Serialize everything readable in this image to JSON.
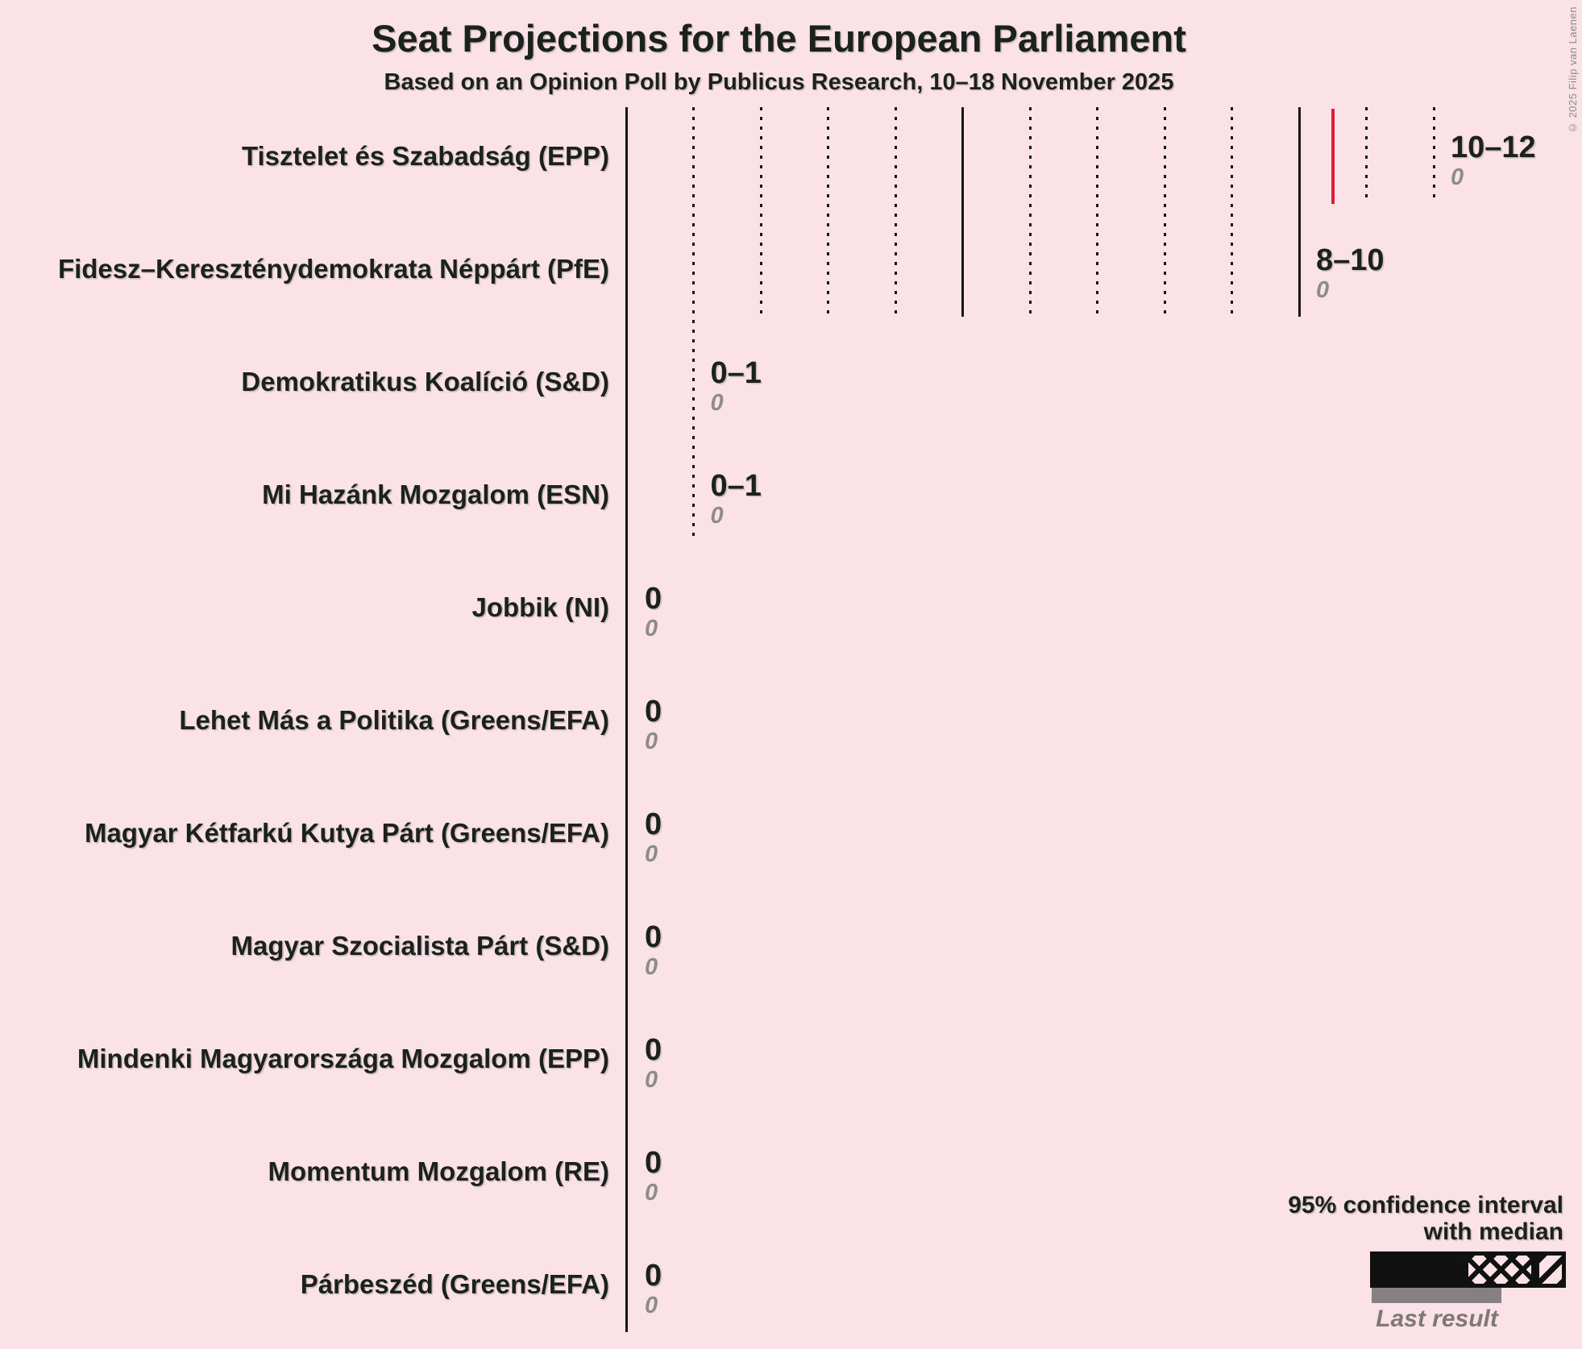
{
  "title": "Seat Projections for the European Parliament",
  "subtitle": "Based on an Opinion Poll by Publicus Research, 10–18 November 2025",
  "copyright": "© 2025 Filip van Laenen",
  "legend": {
    "ci_line1": "95% confidence interval",
    "ci_line2": "with median",
    "last_result": "Last result"
  },
  "colors": {
    "background": "#FAE2E7",
    "text": "#1B221E",
    "muted_text": "#8C8C8C",
    "gridline": "#161616",
    "median_line": "#DC1C3C",
    "last_result_bar": "#868083"
  },
  "chart_data": {
    "type": "bar",
    "orientation": "horizontal",
    "x_axis": {
      "min": 0,
      "max": 12,
      "tick_step": 1,
      "major_step": 5,
      "tick_labels_shown": false
    },
    "legend_note": "95% confidence interval with median; gray underbar = last result",
    "bars": [
      {
        "party": "Tisztelet és Szabadság (EPP)",
        "ci_label": "10–12",
        "low": 10,
        "high": 12,
        "median": 10.5,
        "median_line": true,
        "solid_to": 10,
        "crosshatch_to": 11,
        "diagonal_to": 12,
        "color": "#3699FB",
        "last_result": 0,
        "last_result_label": "0"
      },
      {
        "party": "Fidesz–Kereszténydemokrata Néppárt (PfE)",
        "ci_label": "8–10",
        "low": 8,
        "high": 10,
        "median": 9,
        "median_line": false,
        "solid_to": 8,
        "crosshatch_to": 9,
        "diagonal_to": 10,
        "color": "#0D0D0D",
        "last_result": 0,
        "last_result_label": "0"
      },
      {
        "party": "Demokratikus Koalíció (S&D)",
        "ci_label": "0–1",
        "low": 0,
        "high": 1,
        "median": null,
        "median_line": false,
        "solid_to": 0,
        "crosshatch_to": 1,
        "diagonal_to": 1,
        "color": "#FF0600",
        "last_result": 0,
        "last_result_label": "0"
      },
      {
        "party": "Mi Hazánk Mozgalom (ESN)",
        "ci_label": "0–1",
        "low": 0,
        "high": 1,
        "median": null,
        "median_line": false,
        "solid_to": 0,
        "crosshatch_to": 0,
        "diagonal_to": 1,
        "color": "#76493B",
        "last_result": 0,
        "last_result_label": "0"
      },
      {
        "party": "Jobbik (NI)",
        "ci_label": "0",
        "low": 0,
        "high": 0,
        "median": null,
        "median_line": false,
        "solid_to": 0,
        "crosshatch_to": 0,
        "diagonal_to": 0,
        "color": null,
        "last_result": 0,
        "last_result_label": "0"
      },
      {
        "party": "Lehet Más a Politika (Greens/EFA)",
        "ci_label": "0",
        "low": 0,
        "high": 0,
        "median": null,
        "median_line": false,
        "solid_to": 0,
        "crosshatch_to": 0,
        "diagonal_to": 0,
        "color": null,
        "last_result": 0,
        "last_result_label": "0"
      },
      {
        "party": "Magyar Kétfarkú Kutya Párt (Greens/EFA)",
        "ci_label": "0",
        "low": 0,
        "high": 0,
        "median": null,
        "median_line": false,
        "solid_to": 0,
        "crosshatch_to": 0,
        "diagonal_to": 0,
        "color": null,
        "last_result": 0,
        "last_result_label": "0"
      },
      {
        "party": "Magyar Szocialista Párt (S&D)",
        "ci_label": "0",
        "low": 0,
        "high": 0,
        "median": null,
        "median_line": false,
        "solid_to": 0,
        "crosshatch_to": 0,
        "diagonal_to": 0,
        "color": null,
        "last_result": 0,
        "last_result_label": "0"
      },
      {
        "party": "Mindenki Magyarországa Mozgalom (EPP)",
        "ci_label": "0",
        "low": 0,
        "high": 0,
        "median": null,
        "median_line": false,
        "solid_to": 0,
        "crosshatch_to": 0,
        "diagonal_to": 0,
        "color": null,
        "last_result": 0,
        "last_result_label": "0"
      },
      {
        "party": "Momentum Mozgalom (RE)",
        "ci_label": "0",
        "low": 0,
        "high": 0,
        "median": null,
        "median_line": false,
        "solid_to": 0,
        "crosshatch_to": 0,
        "diagonal_to": 0,
        "color": null,
        "last_result": 0,
        "last_result_label": "0"
      },
      {
        "party": "Párbeszéd (Greens/EFA)",
        "ci_label": "0",
        "low": 0,
        "high": 0,
        "median": null,
        "median_line": false,
        "solid_to": 0,
        "crosshatch_to": 0,
        "diagonal_to": 0,
        "color": null,
        "last_result": 0,
        "last_result_label": "0"
      }
    ]
  }
}
